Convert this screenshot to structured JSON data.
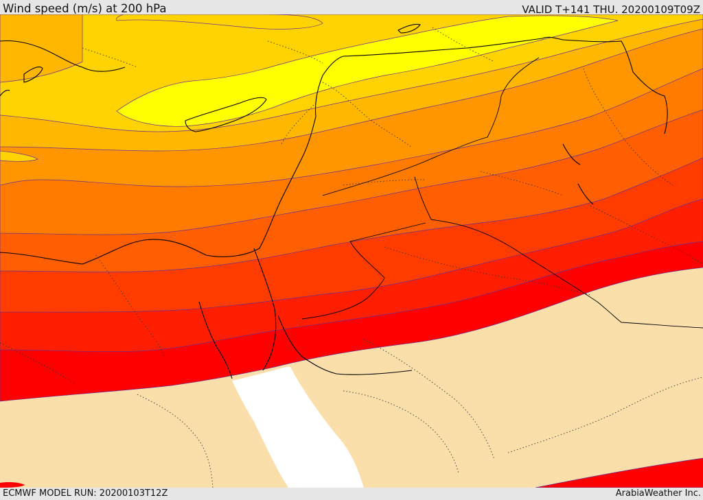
{
  "header": {
    "title": "Wind speed (m/s) at 200 hPa",
    "valid": "VALID T+141 THU. 20200109T09Z"
  },
  "footer": {
    "model_run": "ECMWF MODEL RUN: 20200103T12Z",
    "credit": "ArabiaWeather Inc."
  },
  "map": {
    "field": "wind speed at 200 hPa",
    "fill_colors": {
      "light": "#fbdfaa",
      "band_1": "#ffff00",
      "band_2": "#ffd300",
      "band_3": "#ffb700",
      "band_4": "#ff9600",
      "band_5": "#ff7b00",
      "band_6": "#ff5f00",
      "band_7": "#ff3c00",
      "band_8": "#ff1e00",
      "band_9": "#ff0000",
      "sea": "#ffffff"
    }
  }
}
